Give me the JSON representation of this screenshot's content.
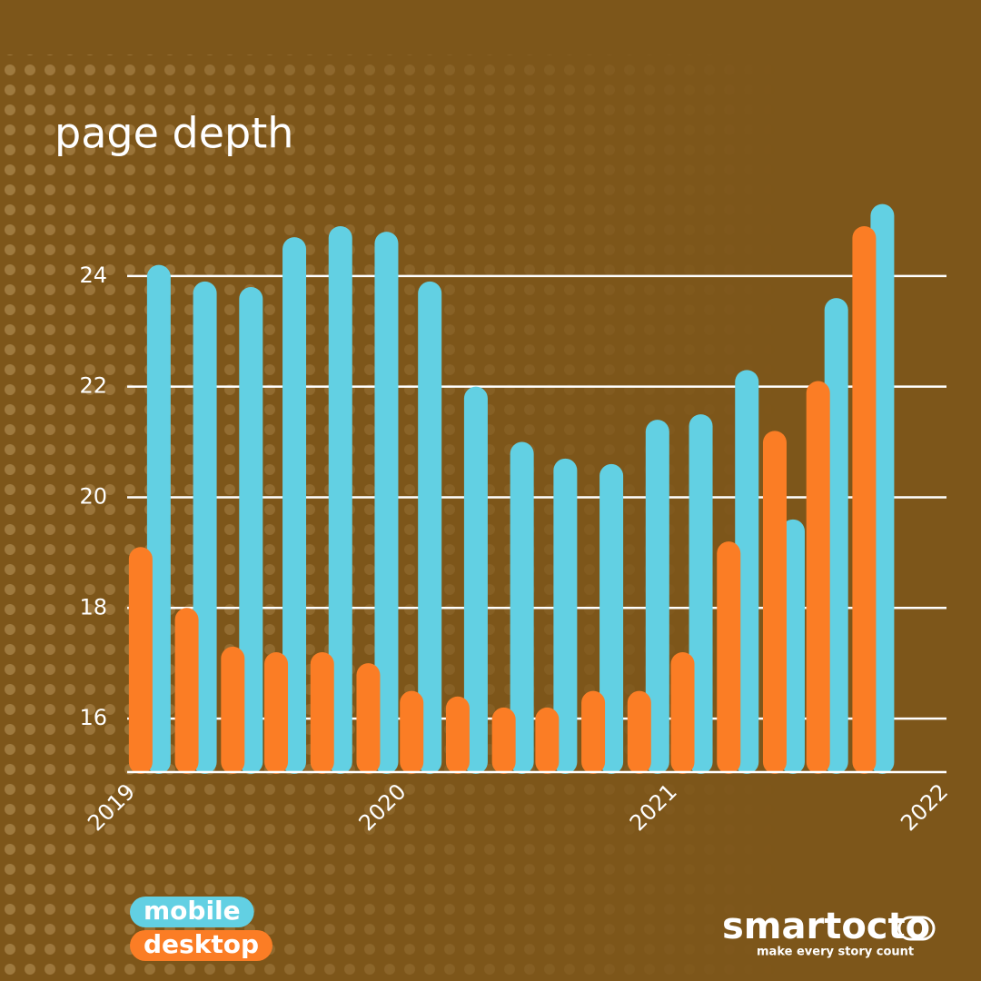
{
  "chart_data": {
    "type": "bar",
    "title": "page depth",
    "x": [
      2019.08,
      2019.25,
      2019.42,
      2019.58,
      2019.75,
      2019.92,
      2020.08,
      2020.25,
      2020.42,
      2020.58,
      2020.75,
      2020.92,
      2021.08,
      2021.25,
      2021.42,
      2021.58,
      2021.75
    ],
    "series": [
      {
        "name": "mobile",
        "color": "#62d0e3",
        "values": [
          24.2,
          23.9,
          23.8,
          24.7,
          24.9,
          24.8,
          23.9,
          22.0,
          21.0,
          20.7,
          20.6,
          21.4,
          21.5,
          22.3,
          19.6,
          23.6,
          25.3
        ]
      },
      {
        "name": "desktop",
        "color": "#fb7d25",
        "values": [
          19.1,
          18.0,
          17.3,
          17.2,
          17.2,
          17.0,
          16.5,
          16.4,
          16.2,
          16.2,
          16.5,
          16.5,
          17.2,
          19.2,
          21.2,
          22.1,
          24.9
        ]
      }
    ],
    "xlim": [
      2019,
      2022
    ],
    "xticks": [
      2019,
      2020,
      2021,
      2022
    ],
    "ylim": [
      15,
      26
    ],
    "yticks": [
      16,
      18,
      20,
      22,
      24
    ],
    "grid": true,
    "legend": "bottom-left"
  },
  "footer": {
    "logo": "smartocto",
    "tagline": "make every story count"
  }
}
